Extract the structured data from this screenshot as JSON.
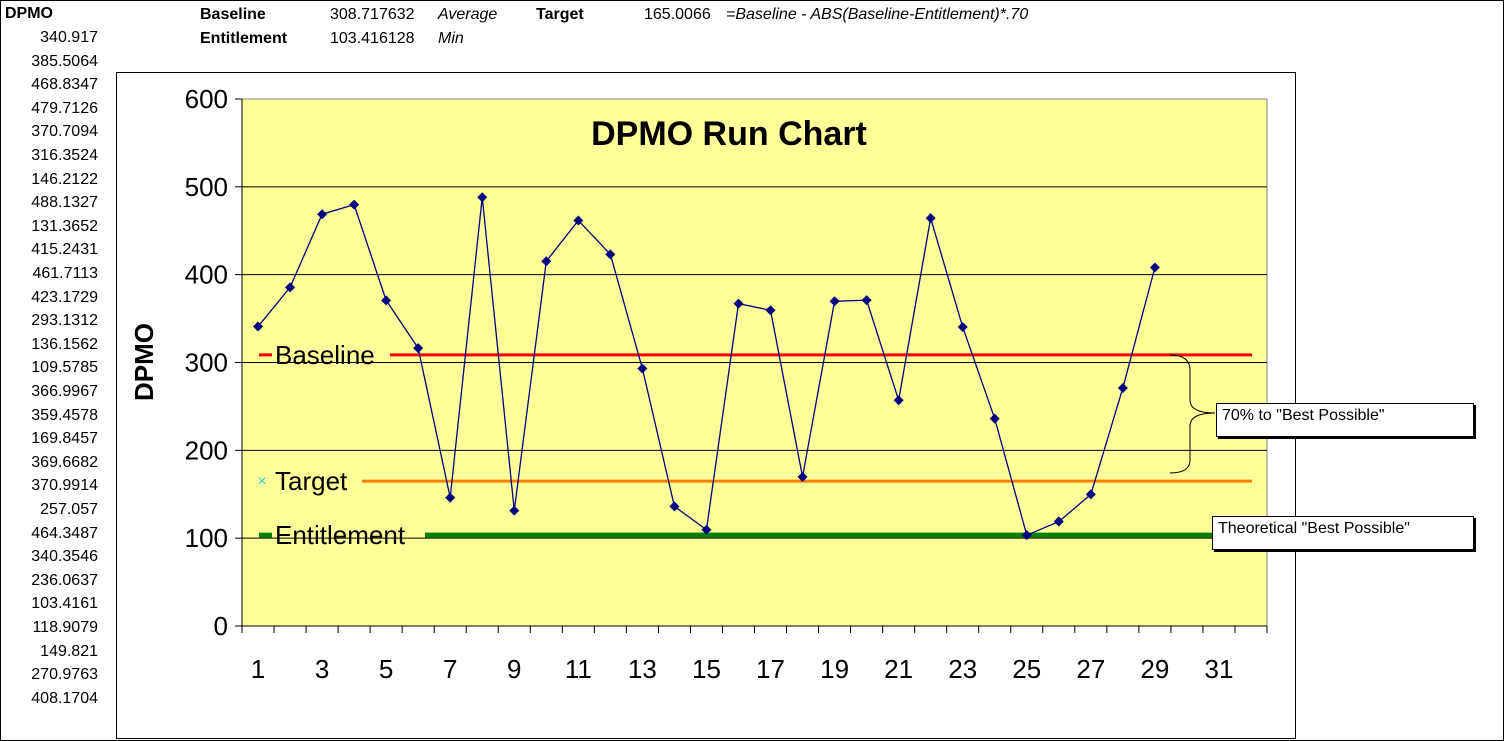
{
  "sheet": {
    "column_header": "DPMO",
    "column_values": [
      "340.917",
      "385.5064",
      "468.8347",
      "479.7126",
      "370.7094",
      "316.3524",
      "146.2122",
      "488.1327",
      "131.3652",
      "415.2431",
      "461.7113",
      "423.1729",
      "293.1312",
      "136.1562",
      "109.5785",
      "366.9967",
      "359.4578",
      "169.8457",
      "369.6682",
      "370.9914",
      "257.057",
      "464.3487",
      "340.3546",
      "236.0637",
      "103.4161",
      "118.9079",
      "149.821",
      "270.9763",
      "408.1704"
    ],
    "baseline_label": "Baseline",
    "baseline_value": "308.717632",
    "baseline_note": "Average",
    "entitlement_label": "Entitlement",
    "entitlement_value": "103.416128",
    "entitlement_note": "Min",
    "target_label": "Target",
    "target_value": "165.0066",
    "target_formula": "=Baseline - ABS(Baseline-Entitlement)*.70"
  },
  "callouts": {
    "best_possible_70": "70% to \"Best Possible\"",
    "theoretical": "Theoretical \"Best Possible\""
  },
  "chart_data": {
    "type": "line",
    "title": "DPMO Run Chart",
    "xlabel": "",
    "ylabel": "DPMO",
    "ylim": [
      0,
      600
    ],
    "yticks": [
      0,
      100,
      200,
      300,
      400,
      500,
      600
    ],
    "xlim": [
      1,
      32
    ],
    "xticks": [
      1,
      3,
      5,
      7,
      9,
      11,
      13,
      15,
      17,
      19,
      21,
      23,
      25,
      27,
      29,
      31
    ],
    "grid": true,
    "plot_background": "#ffff99",
    "series": [
      {
        "name": "DPMO",
        "color": "#000080",
        "x": [
          1,
          2,
          3,
          4,
          5,
          6,
          7,
          8,
          9,
          10,
          11,
          12,
          13,
          14,
          15,
          16,
          17,
          18,
          19,
          20,
          21,
          22,
          23,
          24,
          25,
          26,
          27,
          28,
          29
        ],
        "values": [
          340.917,
          385.5064,
          468.8347,
          479.7126,
          370.7094,
          316.3524,
          146.2122,
          488.1327,
          131.3652,
          415.2431,
          461.7113,
          423.1729,
          293.1312,
          136.1562,
          109.5785,
          366.9967,
          359.4578,
          169.8457,
          369.6682,
          370.9914,
          257.057,
          464.3487,
          340.3546,
          236.0637,
          103.4161,
          118.9079,
          149.821,
          270.9763,
          408.1704
        ]
      }
    ],
    "reference_lines": [
      {
        "name": "Baseline",
        "value": 308.717632,
        "color": "#ff0000"
      },
      {
        "name": "Target",
        "value": 165.0066,
        "color": "#ff8000"
      },
      {
        "name": "Entitlement",
        "value": 103.416128,
        "color": "#008000"
      }
    ]
  }
}
